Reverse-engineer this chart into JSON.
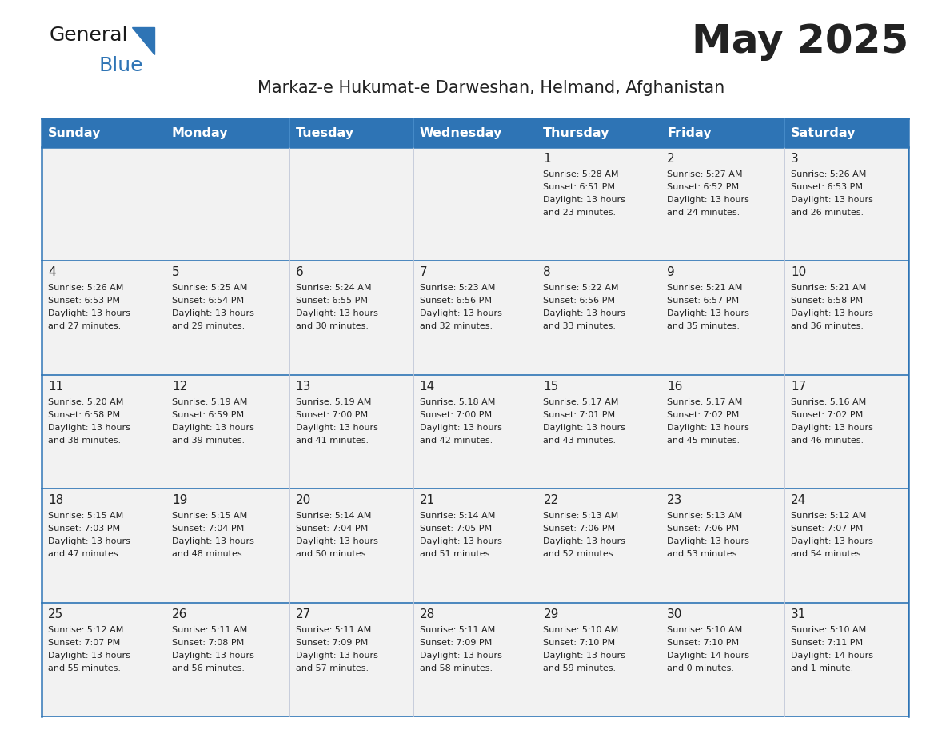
{
  "title": "May 2025",
  "subtitle": "Markaz-e Hukumat-e Darweshan, Helmand, Afghanistan",
  "days_of_week": [
    "Sunday",
    "Monday",
    "Tuesday",
    "Wednesday",
    "Thursday",
    "Friday",
    "Saturday"
  ],
  "header_bg": "#2E74B5",
  "header_text": "#FFFFFF",
  "cell_bg": "#F2F2F2",
  "text_color": "#222222",
  "border_color": "#2E74B5",
  "separator_color": "#B0B8C8",
  "calendar_data": [
    [
      null,
      null,
      null,
      null,
      {
        "day": "1",
        "sunrise": "5:28 AM",
        "sunset": "6:51 PM",
        "daylight_line1": "Daylight: 13 hours",
        "daylight_line2": "and 23 minutes."
      },
      {
        "day": "2",
        "sunrise": "5:27 AM",
        "sunset": "6:52 PM",
        "daylight_line1": "Daylight: 13 hours",
        "daylight_line2": "and 24 minutes."
      },
      {
        "day": "3",
        "sunrise": "5:26 AM",
        "sunset": "6:53 PM",
        "daylight_line1": "Daylight: 13 hours",
        "daylight_line2": "and 26 minutes."
      }
    ],
    [
      {
        "day": "4",
        "sunrise": "5:26 AM",
        "sunset": "6:53 PM",
        "daylight_line1": "Daylight: 13 hours",
        "daylight_line2": "and 27 minutes."
      },
      {
        "day": "5",
        "sunrise": "5:25 AM",
        "sunset": "6:54 PM",
        "daylight_line1": "Daylight: 13 hours",
        "daylight_line2": "and 29 minutes."
      },
      {
        "day": "6",
        "sunrise": "5:24 AM",
        "sunset": "6:55 PM",
        "daylight_line1": "Daylight: 13 hours",
        "daylight_line2": "and 30 minutes."
      },
      {
        "day": "7",
        "sunrise": "5:23 AM",
        "sunset": "6:56 PM",
        "daylight_line1": "Daylight: 13 hours",
        "daylight_line2": "and 32 minutes."
      },
      {
        "day": "8",
        "sunrise": "5:22 AM",
        "sunset": "6:56 PM",
        "daylight_line1": "Daylight: 13 hours",
        "daylight_line2": "and 33 minutes."
      },
      {
        "day": "9",
        "sunrise": "5:21 AM",
        "sunset": "6:57 PM",
        "daylight_line1": "Daylight: 13 hours",
        "daylight_line2": "and 35 minutes."
      },
      {
        "day": "10",
        "sunrise": "5:21 AM",
        "sunset": "6:58 PM",
        "daylight_line1": "Daylight: 13 hours",
        "daylight_line2": "and 36 minutes."
      }
    ],
    [
      {
        "day": "11",
        "sunrise": "5:20 AM",
        "sunset": "6:58 PM",
        "daylight_line1": "Daylight: 13 hours",
        "daylight_line2": "and 38 minutes."
      },
      {
        "day": "12",
        "sunrise": "5:19 AM",
        "sunset": "6:59 PM",
        "daylight_line1": "Daylight: 13 hours",
        "daylight_line2": "and 39 minutes."
      },
      {
        "day": "13",
        "sunrise": "5:19 AM",
        "sunset": "7:00 PM",
        "daylight_line1": "Daylight: 13 hours",
        "daylight_line2": "and 41 minutes."
      },
      {
        "day": "14",
        "sunrise": "5:18 AM",
        "sunset": "7:00 PM",
        "daylight_line1": "Daylight: 13 hours",
        "daylight_line2": "and 42 minutes."
      },
      {
        "day": "15",
        "sunrise": "5:17 AM",
        "sunset": "7:01 PM",
        "daylight_line1": "Daylight: 13 hours",
        "daylight_line2": "and 43 minutes."
      },
      {
        "day": "16",
        "sunrise": "5:17 AM",
        "sunset": "7:02 PM",
        "daylight_line1": "Daylight: 13 hours",
        "daylight_line2": "and 45 minutes."
      },
      {
        "day": "17",
        "sunrise": "5:16 AM",
        "sunset": "7:02 PM",
        "daylight_line1": "Daylight: 13 hours",
        "daylight_line2": "and 46 minutes."
      }
    ],
    [
      {
        "day": "18",
        "sunrise": "5:15 AM",
        "sunset": "7:03 PM",
        "daylight_line1": "Daylight: 13 hours",
        "daylight_line2": "and 47 minutes."
      },
      {
        "day": "19",
        "sunrise": "5:15 AM",
        "sunset": "7:04 PM",
        "daylight_line1": "Daylight: 13 hours",
        "daylight_line2": "and 48 minutes."
      },
      {
        "day": "20",
        "sunrise": "5:14 AM",
        "sunset": "7:04 PM",
        "daylight_line1": "Daylight: 13 hours",
        "daylight_line2": "and 50 minutes."
      },
      {
        "day": "21",
        "sunrise": "5:14 AM",
        "sunset": "7:05 PM",
        "daylight_line1": "Daylight: 13 hours",
        "daylight_line2": "and 51 minutes."
      },
      {
        "day": "22",
        "sunrise": "5:13 AM",
        "sunset": "7:06 PM",
        "daylight_line1": "Daylight: 13 hours",
        "daylight_line2": "and 52 minutes."
      },
      {
        "day": "23",
        "sunrise": "5:13 AM",
        "sunset": "7:06 PM",
        "daylight_line1": "Daylight: 13 hours",
        "daylight_line2": "and 53 minutes."
      },
      {
        "day": "24",
        "sunrise": "5:12 AM",
        "sunset": "7:07 PM",
        "daylight_line1": "Daylight: 13 hours",
        "daylight_line2": "and 54 minutes."
      }
    ],
    [
      {
        "day": "25",
        "sunrise": "5:12 AM",
        "sunset": "7:07 PM",
        "daylight_line1": "Daylight: 13 hours",
        "daylight_line2": "and 55 minutes."
      },
      {
        "day": "26",
        "sunrise": "5:11 AM",
        "sunset": "7:08 PM",
        "daylight_line1": "Daylight: 13 hours",
        "daylight_line2": "and 56 minutes."
      },
      {
        "day": "27",
        "sunrise": "5:11 AM",
        "sunset": "7:09 PM",
        "daylight_line1": "Daylight: 13 hours",
        "daylight_line2": "and 57 minutes."
      },
      {
        "day": "28",
        "sunrise": "5:11 AM",
        "sunset": "7:09 PM",
        "daylight_line1": "Daylight: 13 hours",
        "daylight_line2": "and 58 minutes."
      },
      {
        "day": "29",
        "sunrise": "5:10 AM",
        "sunset": "7:10 PM",
        "daylight_line1": "Daylight: 13 hours",
        "daylight_line2": "and 59 minutes."
      },
      {
        "day": "30",
        "sunrise": "5:10 AM",
        "sunset": "7:10 PM",
        "daylight_line1": "Daylight: 14 hours",
        "daylight_line2": "and 0 minutes."
      },
      {
        "day": "31",
        "sunrise": "5:10 AM",
        "sunset": "7:11 PM",
        "daylight_line1": "Daylight: 14 hours",
        "daylight_line2": "and 1 minute."
      }
    ]
  ],
  "logo_text1": "General",
  "logo_text2": "Blue",
  "logo_text1_color": "#1a1a1a",
  "logo_text2_color": "#2E74B5",
  "logo_triangle_color": "#2E74B5"
}
